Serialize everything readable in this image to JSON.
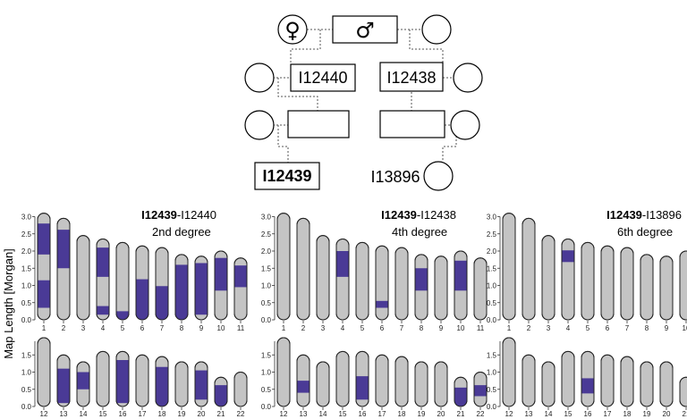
{
  "pedigree": {
    "female_symbol": "♀",
    "male_symbol": "♂",
    "labels": {
      "i12440": "I12440",
      "i12438": "I12438",
      "i12439": "I12439",
      "i13896": "I13896"
    }
  },
  "axis": {
    "ylabel": "Map Length [Morgan]",
    "ticks": [
      "3.0",
      "2.5",
      "2.0",
      "1.5",
      "1.0",
      "0.5",
      "0.0"
    ]
  },
  "chromosome_lengths": {
    "1": 3.1,
    "2": 2.95,
    "3": 2.45,
    "4": 2.35,
    "5": 2.25,
    "6": 2.15,
    "7": 2.1,
    "8": 1.9,
    "9": 1.85,
    "10": 2.0,
    "11": 1.8,
    "12": 2.0,
    "13": 1.5,
    "14": 1.3,
    "15": 1.6,
    "16": 1.6,
    "17": 1.5,
    "18": 1.45,
    "19": 1.3,
    "20": 1.3,
    "21": 0.85,
    "22": 1.0
  },
  "chart_data": [
    {
      "type": "ibd-karyogram",
      "title_bold": "I12439",
      "title_rest": "-I12440",
      "degree": "2nd degree",
      "segments": [
        {
          "chr": 1,
          "start": 1.9,
          "end": 2.8
        },
        {
          "chr": 1,
          "start": 0.35,
          "end": 1.15
        },
        {
          "chr": 2,
          "start": 1.5,
          "end": 2.62
        },
        {
          "chr": 4,
          "start": 1.25,
          "end": 2.1
        },
        {
          "chr": 4,
          "start": 0.15,
          "end": 0.4
        },
        {
          "chr": 5,
          "start": 0.0,
          "end": 0.25
        },
        {
          "chr": 6,
          "start": 0.0,
          "end": 1.18
        },
        {
          "chr": 7,
          "start": 0.0,
          "end": 0.98
        },
        {
          "chr": 8,
          "start": 0.0,
          "end": 1.6
        },
        {
          "chr": 9,
          "start": 0.15,
          "end": 1.65
        },
        {
          "chr": 10,
          "start": 0.85,
          "end": 1.8
        },
        {
          "chr": 11,
          "start": 0.95,
          "end": 1.58
        },
        {
          "chr": 13,
          "start": 0.1,
          "end": 1.1
        },
        {
          "chr": 14,
          "start": 0.5,
          "end": 1.0
        },
        {
          "chr": 16,
          "start": 0.1,
          "end": 1.35
        },
        {
          "chr": 18,
          "start": 0.0,
          "end": 1.15
        },
        {
          "chr": 20,
          "start": 0.2,
          "end": 1.05
        },
        {
          "chr": 21,
          "start": 0.0,
          "end": 0.62
        }
      ]
    },
    {
      "type": "ibd-karyogram",
      "title_bold": "I12439",
      "title_rest": "-I12438",
      "degree": "4th degree",
      "segments": [
        {
          "chr": 4,
          "start": 1.25,
          "end": 2.0
        },
        {
          "chr": 6,
          "start": 0.35,
          "end": 0.55
        },
        {
          "chr": 8,
          "start": 0.85,
          "end": 1.5
        },
        {
          "chr": 10,
          "start": 0.85,
          "end": 1.72
        },
        {
          "chr": 13,
          "start": 0.4,
          "end": 0.75
        },
        {
          "chr": 16,
          "start": 0.2,
          "end": 0.88
        },
        {
          "chr": 21,
          "start": 0.0,
          "end": 0.55
        },
        {
          "chr": 22,
          "start": 0.3,
          "end": 0.62
        }
      ]
    },
    {
      "type": "ibd-karyogram",
      "title_bold": "I12439",
      "title_rest": "-I13896",
      "degree": "6th degree",
      "segments": [
        {
          "chr": 4,
          "start": 1.68,
          "end": 2.02
        },
        {
          "chr": 16,
          "start": 0.38,
          "end": 0.82
        }
      ]
    }
  ],
  "colors": {
    "chromosome": "#c4c4c4",
    "segment": "#4a3a96"
  }
}
